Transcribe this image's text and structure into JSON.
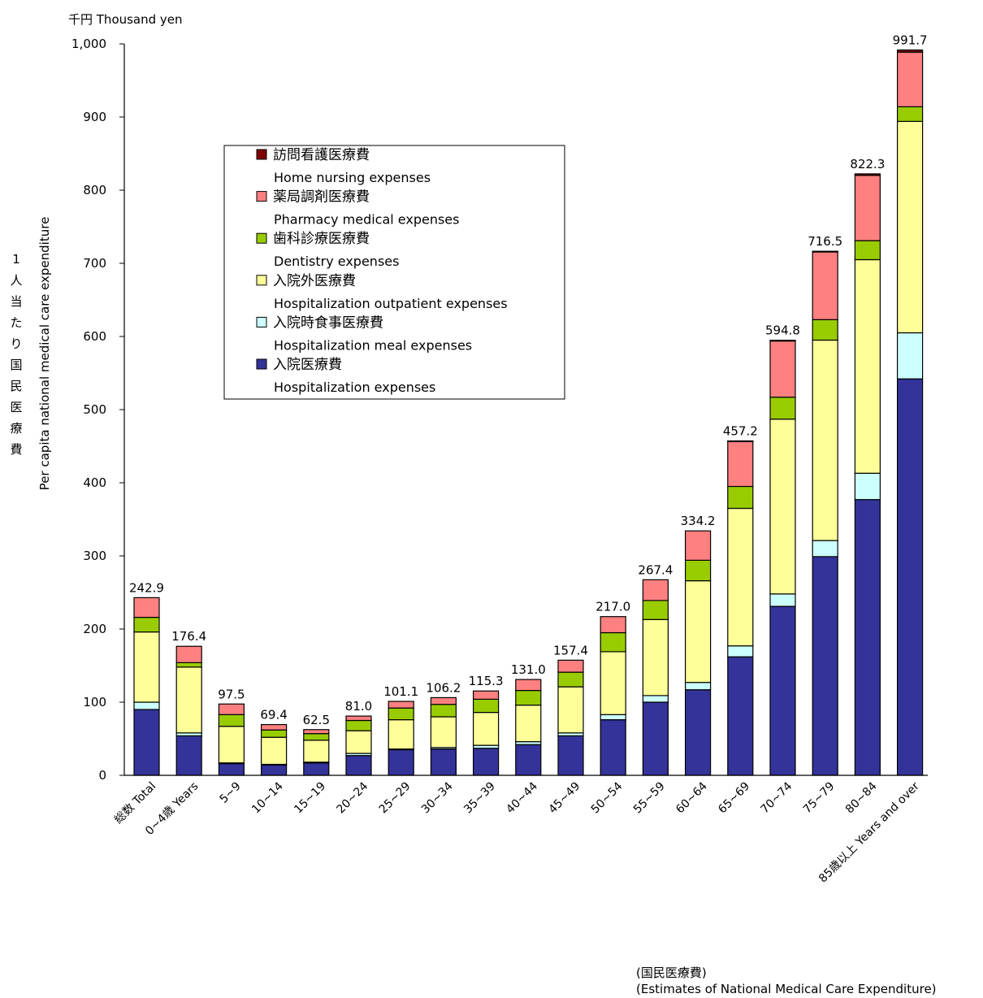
{
  "chart_data": {
    "type": "bar",
    "stacked": true,
    "unit_label": "千円 Thousand yen",
    "ylabel_jp": "1人当たり国民医療費",
    "ylabel_en": "Per capita national medical care expenditure",
    "ylim": [
      0,
      1000
    ],
    "yticks": [
      "0",
      "100",
      "200",
      "300",
      "400",
      "500",
      "600",
      "700",
      "800",
      "900",
      "1,000"
    ],
    "categories": [
      "総数 Total",
      "0~4歳 Years",
      "5~9",
      "10~14",
      "15~19",
      "20~24",
      "25~29",
      "30~34",
      "35~39",
      "40~44",
      "45~49",
      "50~54",
      "55~59",
      "60~64",
      "65~69",
      "70~74",
      "75~79",
      "80~84",
      "85歳以上 Years and over"
    ],
    "totals": [
      "242.9",
      "176.4",
      "97.5",
      "69.4",
      "62.5",
      "81.0",
      "101.1",
      "106.2",
      "115.3",
      "131.0",
      "157.4",
      "217.0",
      "267.4",
      "334.2",
      "457.2",
      "594.8",
      "716.5",
      "822.3",
      "991.7"
    ],
    "series": [
      {
        "name_jp": "入院医療費",
        "name_en": "Hospitalization expenses",
        "color": "#333399",
        "values": [
          90,
          54,
          16,
          14,
          17,
          27,
          35,
          36,
          37,
          42,
          54,
          76,
          100,
          117,
          162,
          231,
          299,
          377,
          542
        ]
      },
      {
        "name_jp": "入院時食事医療費",
        "name_en": "Hospitalization meal expenses",
        "color": "#ccffff",
        "values": [
          10,
          4,
          1,
          1,
          1,
          3,
          1,
          2,
          4,
          4,
          4,
          7,
          9,
          10,
          15,
          17,
          22,
          36,
          63
        ]
      },
      {
        "name_jp": "入院外医療費",
        "name_en": "Hospitalization outpatient expenses",
        "color": "#ffff99",
        "values": [
          96,
          90,
          50,
          37,
          30,
          31,
          40,
          42,
          45,
          50,
          63,
          86,
          104,
          139,
          188,
          239,
          274,
          292,
          289
        ]
      },
      {
        "name_jp": "歯科診療医療費",
        "name_en": "Dentistry expenses",
        "color": "#99cc00",
        "values": [
          20,
          6,
          16,
          10,
          9,
          14,
          16,
          17,
          18,
          20,
          20,
          26,
          26,
          28,
          30,
          30,
          28,
          26,
          20
        ]
      },
      {
        "name_jp": "薬局調剤医療費",
        "name_en": "Pharmacy medical expenses",
        "color": "#ff8080",
        "values": [
          26.9,
          22.4,
          14.5,
          7.4,
          5.5,
          6,
          9.1,
          9.2,
          11.3,
          15,
          16.4,
          22,
          28.4,
          40.2,
          61.2,
          76.8,
          92.5,
          89.3,
          74.7
        ]
      },
      {
        "name_jp": "訪問看護医療費",
        "name_en": "Home nursing expenses",
        "color": "#800000",
        "values": [
          0,
          0,
          0,
          0,
          0,
          0,
          0,
          0,
          0,
          0,
          0,
          0,
          0,
          0,
          1,
          1,
          1,
          2,
          3
        ]
      }
    ],
    "legend": {
      "placement": "top-left inside plot",
      "order": [
        5,
        4,
        3,
        2,
        1,
        0
      ]
    },
    "grid": false
  },
  "source": {
    "line1": "(国民医療費)",
    "line2": "(Estimates of National Medical Care Expenditure)"
  }
}
